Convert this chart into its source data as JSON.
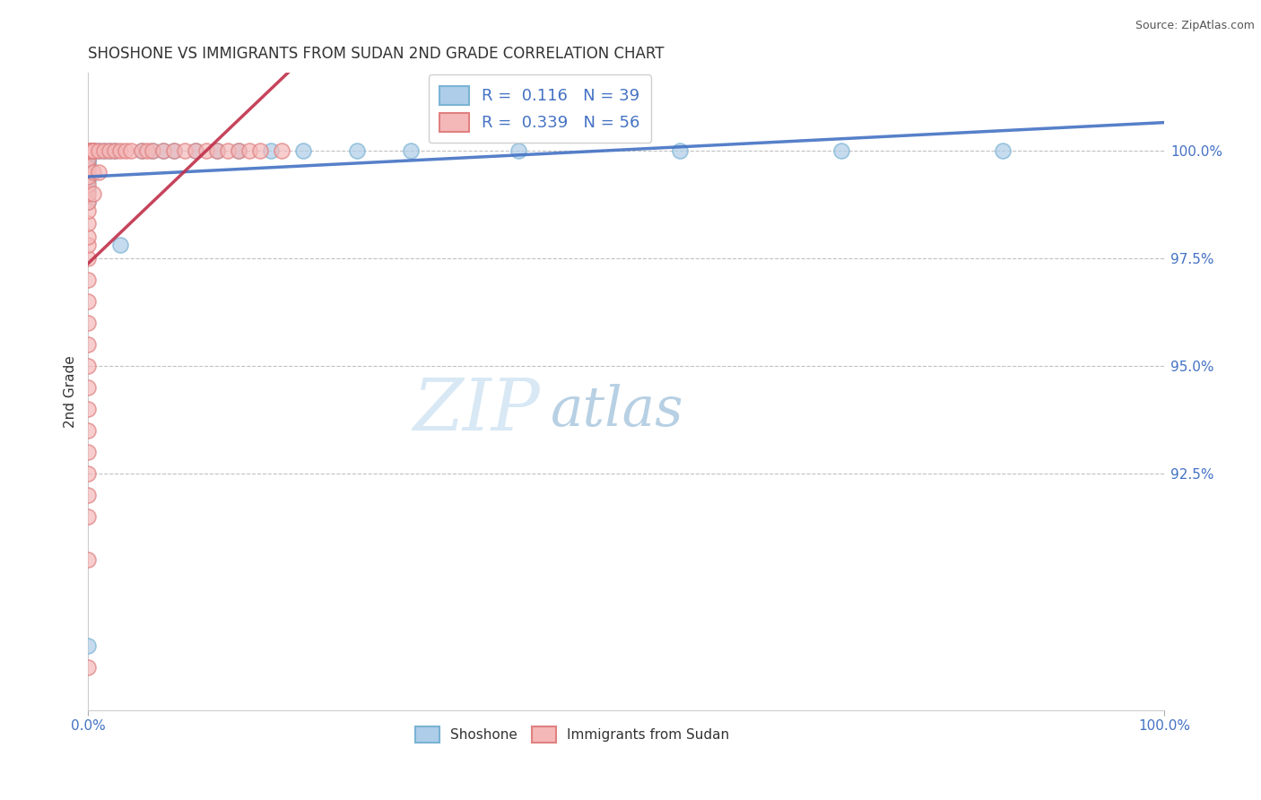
{
  "title": "SHOSHONE VS IMMIGRANTS FROM SUDAN 2ND GRADE CORRELATION CHART",
  "source_text": "Source: ZipAtlas.com",
  "ylabel": "2nd Grade",
  "xlim": [
    0.0,
    100.0
  ],
  "ylim": [
    87.0,
    101.8
  ],
  "yticks": [
    92.5,
    95.0,
    97.5,
    100.0
  ],
  "ytick_labels": [
    "92.5%",
    "95.0%",
    "97.5%",
    "100.0%"
  ],
  "xtick_labels": [
    "0.0%",
    "100.0%"
  ],
  "blue_R": 0.116,
  "blue_N": 39,
  "pink_R": 0.339,
  "pink_N": 56,
  "blue_fill": "#aecde8",
  "blue_edge": "#7ab3d4",
  "pink_fill": "#f5b8b8",
  "pink_edge": "#e08080",
  "blue_line_color": "#4472c4",
  "pink_line_color": "#c0304a",
  "legend_label_blue": "Shoshone",
  "legend_label_pink": "Immigrants from Sudan",
  "watermark_zip": "ZIP",
  "watermark_atlas": "atlas",
  "blue_scatter_x": [
    0.0,
    0.0,
    0.0,
    0.0,
    0.0,
    0.0,
    0.0,
    0.0,
    0.0,
    0.0,
    0.0,
    0.0,
    0.0,
    0.0,
    0.0,
    0.0,
    0.5,
    0.5,
    0.5,
    1.0,
    1.5,
    2.0,
    2.5,
    3.0,
    5.0,
    6.0,
    7.0,
    8.0,
    10.0,
    12.0,
    14.0,
    17.0,
    20.0,
    25.0,
    30.0,
    40.0,
    55.0,
    70.0,
    85.0
  ],
  "blue_scatter_y": [
    88.5,
    98.8,
    99.1,
    99.3,
    99.5,
    99.6,
    99.7,
    99.75,
    99.8,
    99.85,
    99.9,
    99.93,
    99.95,
    99.97,
    100.0,
    100.0,
    100.0,
    100.0,
    100.0,
    100.0,
    100.0,
    100.0,
    100.0,
    97.8,
    100.0,
    100.0,
    100.0,
    100.0,
    100.0,
    100.0,
    100.0,
    100.0,
    100.0,
    100.0,
    100.0,
    100.0,
    100.0,
    100.0,
    100.0
  ],
  "pink_scatter_x": [
    0.0,
    0.0,
    0.0,
    0.0,
    0.0,
    0.0,
    0.0,
    0.0,
    0.0,
    0.0,
    0.0,
    0.0,
    0.0,
    0.0,
    0.0,
    0.0,
    0.0,
    0.0,
    0.0,
    0.0,
    0.0,
    0.0,
    0.0,
    0.0,
    0.0,
    0.0,
    0.0,
    0.0,
    0.0,
    0.5,
    0.5,
    0.5,
    0.5,
    0.5,
    1.0,
    1.0,
    1.5,
    2.0,
    2.5,
    3.0,
    3.5,
    4.0,
    5.0,
    5.5,
    6.0,
    7.0,
    8.0,
    9.0,
    10.0,
    11.0,
    12.0,
    13.0,
    14.0,
    15.0,
    16.0,
    18.0
  ],
  "pink_scatter_y": [
    88.0,
    90.5,
    91.5,
    92.0,
    92.5,
    93.0,
    93.5,
    94.0,
    94.5,
    95.0,
    95.5,
    96.0,
    96.5,
    97.0,
    97.5,
    97.8,
    98.0,
    98.3,
    98.6,
    98.8,
    99.0,
    99.2,
    99.4,
    99.6,
    99.8,
    100.0,
    100.0,
    100.0,
    100.0,
    99.0,
    99.5,
    100.0,
    100.0,
    100.0,
    99.5,
    100.0,
    100.0,
    100.0,
    100.0,
    100.0,
    100.0,
    100.0,
    100.0,
    100.0,
    100.0,
    100.0,
    100.0,
    100.0,
    100.0,
    100.0,
    100.0,
    100.0,
    100.0,
    100.0,
    100.0,
    100.0
  ],
  "background_color": "#ffffff",
  "grid_color": "#bbbbbb",
  "title_fontsize": 12,
  "axis_fontsize": 11,
  "right_tick_color": "#4472c4"
}
